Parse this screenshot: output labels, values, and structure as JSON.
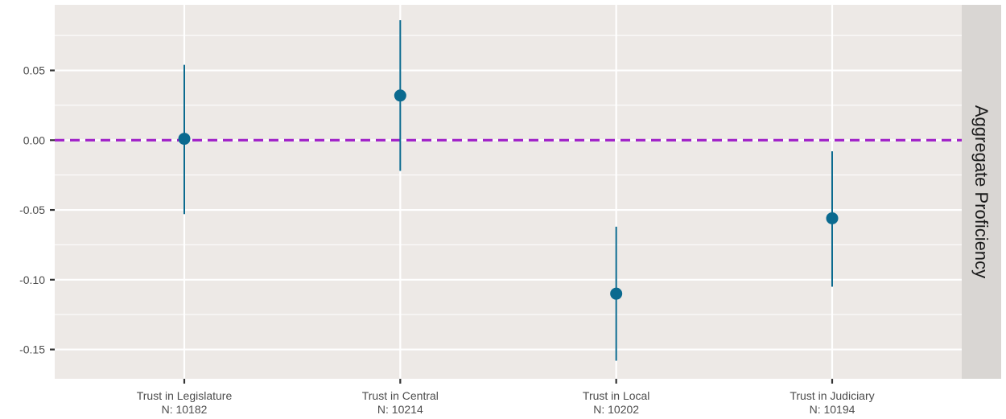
{
  "chart_data": {
    "type": "scatter",
    "subtype": "point-range",
    "facet_label": "Aggregate Proficiency",
    "categories": [
      {
        "label": "Trust in Legislature",
        "n_label": "N: 10182"
      },
      {
        "label": "Trust in Central",
        "n_label": "N: 10214"
      },
      {
        "label": "Trust in Local",
        "n_label": "N: 10202"
      },
      {
        "label": "Trust in Judiciary",
        "n_label": "N: 10194"
      }
    ],
    "estimates": [
      0.001,
      0.032,
      -0.11,
      -0.056
    ],
    "ci_low": [
      -0.053,
      -0.022,
      -0.158,
      -0.105
    ],
    "ci_high": [
      0.054,
      0.086,
      -0.062,
      -0.008
    ],
    "ylim": [
      -0.171,
      0.097
    ],
    "yticks": [
      0.05,
      0.0,
      -0.05,
      -0.1,
      -0.15
    ],
    "ytick_labels": [
      "0.05",
      "0.00",
      "-0.05",
      "-0.10",
      "-0.15"
    ],
    "reference_line": {
      "y": 0.0,
      "style": "dashed",
      "color": "#a020c8"
    },
    "colors": {
      "panel": "#ede9e6",
      "strip": "#d9d6d3",
      "point": "#0b6a8f",
      "grid": "#ffffff"
    },
    "grid": true
  }
}
